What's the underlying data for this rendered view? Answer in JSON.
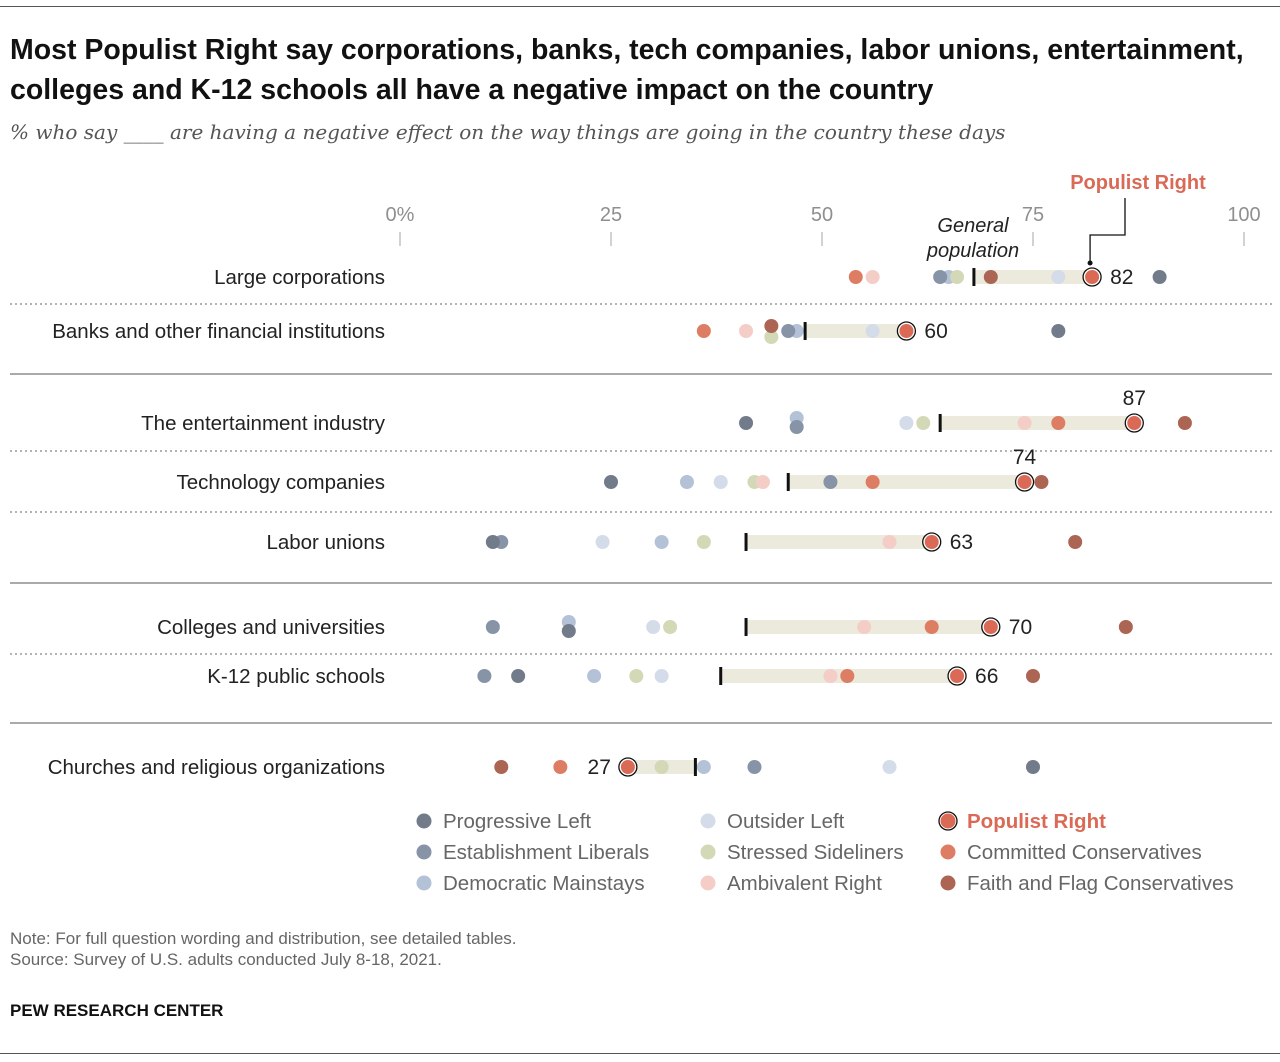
{
  "title": "Most Populist Right say corporations, banks, tech companies, labor unions, entertainment, colleges and K-12 schools all have a negative impact on the country",
  "subtitle": "% who say ____ are having a negative effect on the way things are going in the country these days",
  "note": "Note: For full question wording and distribution, see detailed tables.",
  "source": "Source: Survey of U.S. adults conducted July 8-18, 2021.",
  "footer": "PEW RESEARCH CENTER",
  "chart_data": {
    "type": "dot_plot",
    "xlim": [
      0,
      100
    ],
    "ticks": [
      {
        "value": 0,
        "label": "0%"
      },
      {
        "value": 25,
        "label": "25"
      },
      {
        "value": 50,
        "label": "50"
      },
      {
        "value": 75,
        "label": "75"
      },
      {
        "value": 100,
        "label": "100"
      }
    ],
    "annotations": {
      "general_population": "General population",
      "populist_right": "Populist Right"
    },
    "groups": [
      {
        "key": "PL",
        "name": "Progressive Left",
        "color": "#727b8a"
      },
      {
        "key": "EL",
        "name": "Establishment Liberals",
        "color": "#8793a6"
      },
      {
        "key": "DM",
        "name": "Democratic Mainstays",
        "color": "#b4c2d7"
      },
      {
        "key": "OL",
        "name": "Outsider Left",
        "color": "#d3dce8"
      },
      {
        "key": "SS",
        "name": "Stressed Sideliners",
        "color": "#d3d9b6"
      },
      {
        "key": "AR",
        "name": "Ambivalent Right",
        "color": "#f4cdc7"
      },
      {
        "key": "PR",
        "name": "Populist Right",
        "color": "#da6a55"
      },
      {
        "key": "CC",
        "name": "Committed Conservatives",
        "color": "#dd7d63"
      },
      {
        "key": "FF",
        "name": "Faith and Flag Conservatives",
        "color": "#ac6453"
      }
    ],
    "rows": [
      {
        "label": "Large corporations",
        "general": 68,
        "populist_right": 82,
        "value_label": "82",
        "values": {
          "PL": 90,
          "EL": 64,
          "DM": 65,
          "OL": 78,
          "SS": 66,
          "AR": 56,
          "PR": 82,
          "CC": 54,
          "FF": 70
        }
      },
      {
        "label": "Banks and other financial institutions",
        "general": 48,
        "populist_right": 60,
        "value_label": "60",
        "values": {
          "PL": 78,
          "EL": 46,
          "DM": 47,
          "OL": 56,
          "SS": 44,
          "AR": 41,
          "PR": 60,
          "CC": 36,
          "FF": 44
        }
      },
      {
        "label": "The entertainment industry",
        "general": 64,
        "populist_right": 87,
        "value_label": "87",
        "values": {
          "PL": 41,
          "EL": 47,
          "DM": 47,
          "OL": 60,
          "SS": 62,
          "AR": 74,
          "PR": 87,
          "CC": 78,
          "FF": 93
        }
      },
      {
        "label": "Technology companies",
        "general": 46,
        "populist_right": 74,
        "value_label": "74",
        "values": {
          "PL": 25,
          "EL": 51,
          "DM": 34,
          "OL": 38,
          "SS": 42,
          "AR": 43,
          "PR": 74,
          "CC": 56,
          "FF": 76
        }
      },
      {
        "label": "Labor unions",
        "general": 41,
        "populist_right": 63,
        "value_label": "63",
        "values": {
          "PL": 11,
          "EL": 12,
          "DM": 31,
          "OL": 24,
          "SS": 36,
          "AR": 58,
          "PR": 63,
          "CC": 63,
          "FF": 80
        }
      },
      {
        "label": "Colleges and universities",
        "general": 41,
        "populist_right": 70,
        "value_label": "70",
        "values": {
          "PL": 20,
          "EL": 11,
          "DM": 20,
          "OL": 30,
          "SS": 32,
          "AR": 55,
          "PR": 70,
          "CC": 63,
          "FF": 86
        }
      },
      {
        "label": "K-12 public schools",
        "general": 38,
        "populist_right": 66,
        "value_label": "66",
        "values": {
          "PL": 14,
          "EL": 10,
          "DM": 23,
          "OL": 31,
          "SS": 28,
          "AR": 51,
          "PR": 66,
          "CC": 53,
          "FF": 75
        }
      },
      {
        "label": "Churches and religious organizations",
        "general": 35,
        "populist_right": 27,
        "value_label": "27",
        "values": {
          "PL": 75,
          "EL": 42,
          "DM": 36,
          "OL": 58,
          "SS": 31,
          "AR": 27,
          "PR": 27,
          "CC": 19,
          "FF": 12
        }
      }
    ]
  }
}
